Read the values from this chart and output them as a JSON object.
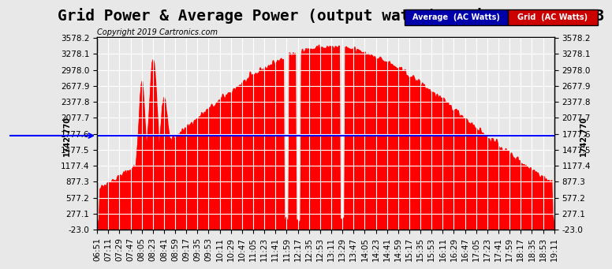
{
  "title": "Grid Power & Average Power (output watts)  Fri Mar 22 19:13",
  "copyright": "Copyright 2019 Cartronics.com",
  "average_value": 1742.77,
  "y_min": -23.0,
  "y_max": 3578.2,
  "y_ticks": [
    -23.0,
    277.1,
    577.2,
    877.3,
    1177.4,
    1477.5,
    1777.6,
    2077.7,
    2377.8,
    2677.9,
    2978.0,
    3278.1,
    3578.2
  ],
  "x_labels": [
    "06:51",
    "07:11",
    "07:29",
    "07:47",
    "08:05",
    "08:23",
    "08:41",
    "08:59",
    "09:17",
    "09:35",
    "09:53",
    "10:11",
    "10:29",
    "10:47",
    "11:05",
    "11:23",
    "11:41",
    "11:59",
    "12:17",
    "12:35",
    "12:53",
    "13:11",
    "13:29",
    "13:47",
    "14:05",
    "14:23",
    "14:41",
    "14:59",
    "15:17",
    "15:35",
    "15:53",
    "16:11",
    "16:29",
    "16:47",
    "17:05",
    "17:23",
    "17:41",
    "17:59",
    "18:17",
    "18:35",
    "18:53",
    "19:11"
  ],
  "background_color": "#e8e8e8",
  "plot_bg_color": "#e8e8e8",
  "fill_color": "#ff0000",
  "line_color": "#ff0000",
  "avg_line_color": "#0000ff",
  "grid_color": "#ffffff",
  "left_ylabel": "1742.770",
  "right_ylabel": "1742.770",
  "legend_avg_color": "#0000aa",
  "legend_grid_color": "#cc0000",
  "title_fontsize": 14,
  "tick_fontsize": 7.5,
  "label_fontsize": 8
}
